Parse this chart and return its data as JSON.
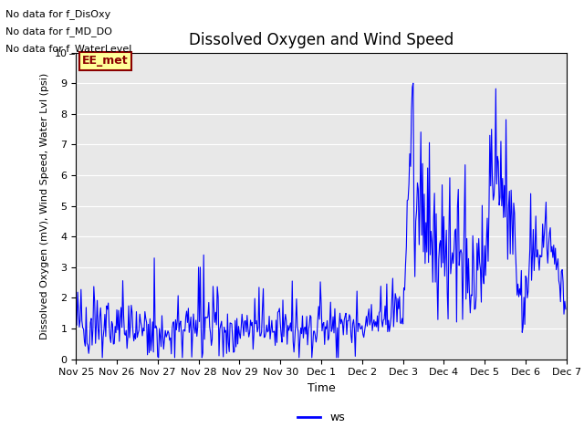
{
  "title": "Dissolved Oxygen and Wind Speed",
  "ylabel": "Dissolved Oxygen (mV), Wind Speed, Water Lvl (psi)",
  "xlabel": "Time",
  "ylim": [
    0.0,
    10.0
  ],
  "yticks": [
    0.0,
    1.0,
    2.0,
    3.0,
    4.0,
    5.0,
    6.0,
    7.0,
    8.0,
    9.0,
    10.0
  ],
  "xtick_labels": [
    "Nov 25",
    "Nov 26",
    "Nov 27",
    "Nov 28",
    "Nov 29",
    "Nov 30",
    "Dec 1",
    "Dec 2",
    "Dec 3",
    "Dec 4",
    "Dec 5",
    "Dec 6",
    "Dec 7"
  ],
  "line_color": "blue",
  "line_width": 0.8,
  "legend_label": "ws",
  "legend_line_color": "blue",
  "no_data_texts": [
    "No data for f_DisOxy",
    "No data for f_MD_DO",
    "No data for f_WaterLevel"
  ],
  "annotation_text": "EE_met",
  "annotation_color": "#8b0000",
  "annotation_bgcolor": "#ffff99",
  "plot_bg_color": "#e8e8e8",
  "fig_bg_color": "#ffffff",
  "grid_color": "#ffffff",
  "title_fontsize": 12,
  "ylabel_fontsize": 8,
  "xlabel_fontsize": 9,
  "tick_fontsize": 8
}
